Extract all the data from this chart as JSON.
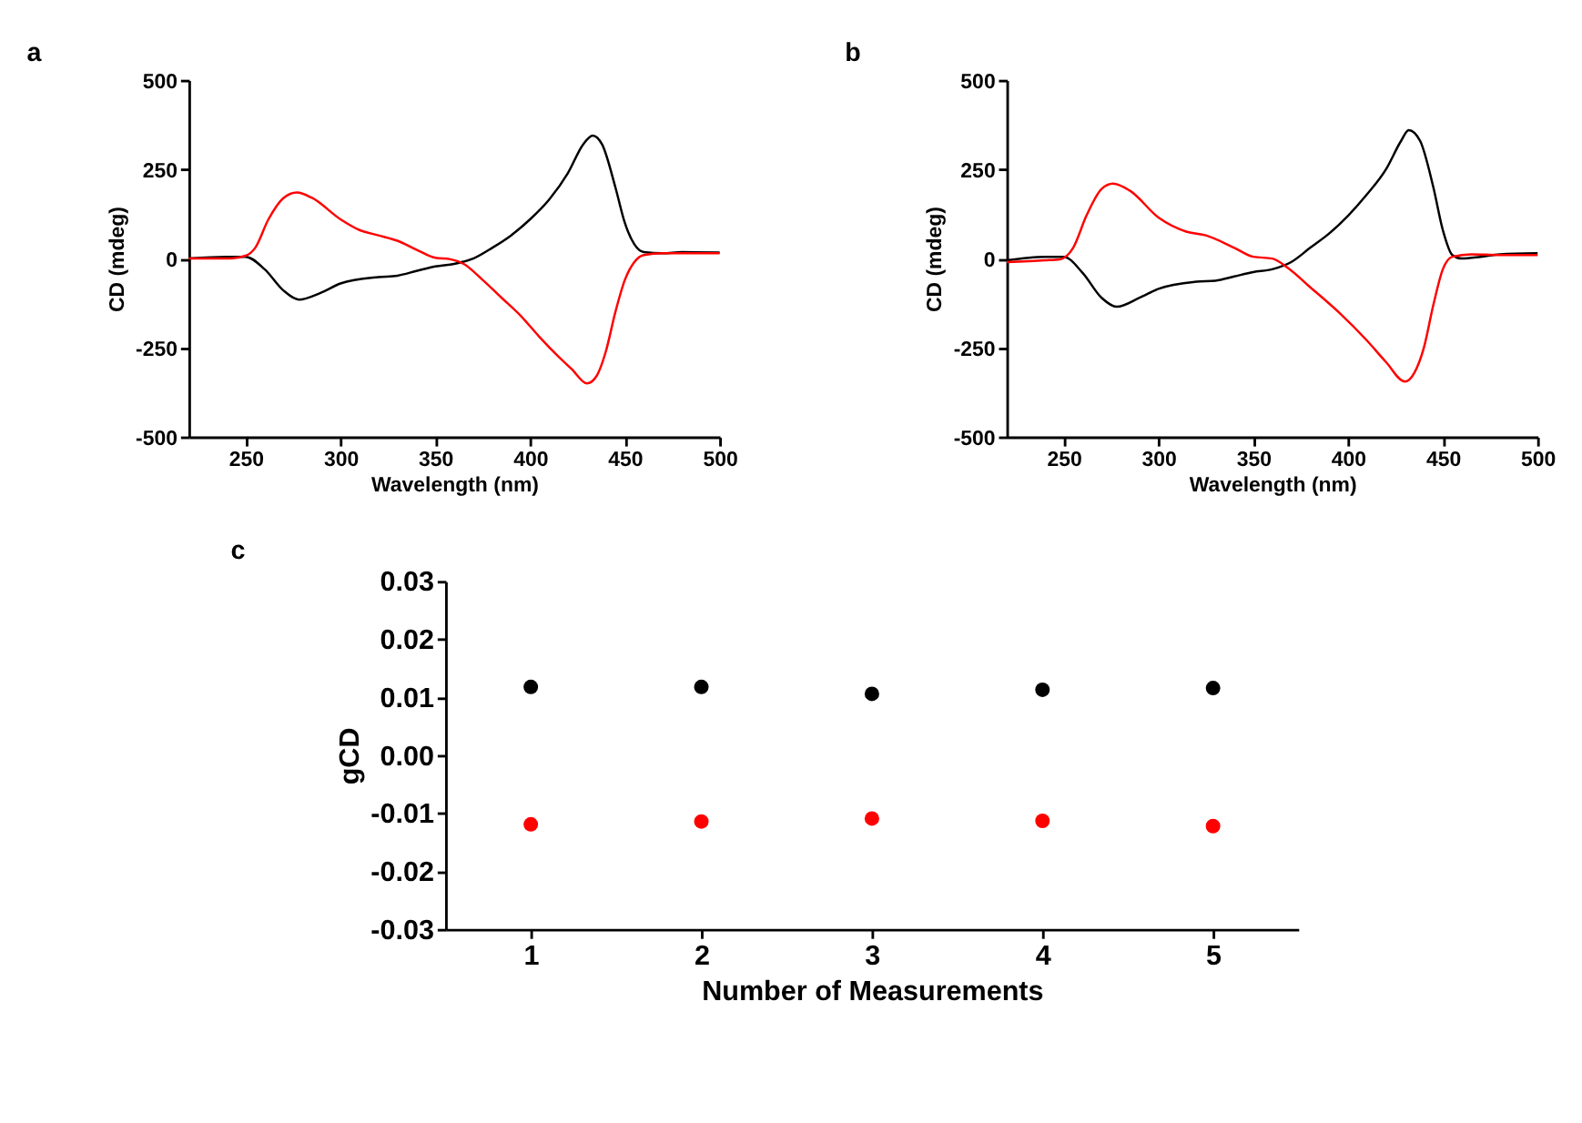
{
  "chart_data": [
    {
      "type": "line",
      "title": "a",
      "xlabel": "Wavelength (nm)",
      "ylabel": "CD (mdeg)",
      "xlim": [
        220,
        500
      ],
      "xticks": [
        250,
        300,
        350,
        400,
        450,
        500
      ],
      "ylim": [
        -500,
        500
      ],
      "yticks": [
        -500,
        -250,
        0,
        250,
        500
      ],
      "grid": false,
      "legend": false,
      "marker": "none",
      "line_style": "solid",
      "series": [
        {
          "color": "#000000",
          "x": [
            220,
            240,
            250,
            260,
            270,
            278,
            290,
            300,
            320,
            330,
            340,
            350,
            360,
            370,
            380,
            390,
            400,
            410,
            420,
            428,
            433,
            438,
            445,
            450,
            455,
            460,
            470,
            480,
            500
          ],
          "values": [
            0,
            5,
            5,
            -30,
            -90,
            -115,
            -95,
            -70,
            -52,
            -48,
            -35,
            -22,
            -15,
            0,
            30,
            65,
            110,
            165,
            240,
            320,
            345,
            320,
            200,
            100,
            40,
            18,
            15,
            18,
            17
          ]
        },
        {
          "color": "#ff0000",
          "x": [
            220,
            240,
            250,
            255,
            262,
            270,
            277,
            285,
            300,
            310,
            320,
            330,
            340,
            350,
            358,
            365,
            375,
            385,
            395,
            405,
            415,
            422,
            430,
            435,
            440,
            445,
            450,
            455,
            460,
            470,
            500
          ],
          "values": [
            0,
            0,
            8,
            30,
            110,
            170,
            185,
            170,
            110,
            80,
            65,
            50,
            25,
            2,
            -2,
            -15,
            -60,
            -110,
            -160,
            -220,
            -275,
            -310,
            -350,
            -330,
            -260,
            -150,
            -60,
            -10,
            10,
            15,
            15
          ]
        }
      ]
    },
    {
      "type": "line",
      "title": "b",
      "xlabel": "Wavelength (nm)",
      "ylabel": "CD (mdeg)",
      "xlim": [
        220,
        500
      ],
      "xticks": [
        250,
        300,
        350,
        400,
        450,
        500
      ],
      "ylim": [
        -500,
        500
      ],
      "yticks": [
        -500,
        -250,
        0,
        250,
        500
      ],
      "grid": false,
      "legend": false,
      "marker": "none",
      "line_style": "solid",
      "series": [
        {
          "color": "#000000",
          "x": [
            220,
            240,
            250,
            260,
            270,
            278,
            290,
            300,
            320,
            330,
            340,
            350,
            360,
            370,
            380,
            390,
            400,
            410,
            420,
            428,
            432,
            438,
            445,
            450,
            455,
            460,
            470,
            480,
            500
          ],
          "values": [
            -5,
            5,
            5,
            -40,
            -110,
            -135,
            -110,
            -85,
            -65,
            -62,
            -50,
            -38,
            -30,
            -10,
            30,
            70,
            120,
            180,
            250,
            330,
            360,
            330,
            200,
            80,
            10,
            0,
            5,
            12,
            15
          ]
        },
        {
          "color": "#ff0000",
          "x": [
            220,
            240,
            248,
            255,
            262,
            270,
            276,
            285,
            300,
            315,
            325,
            340,
            350,
            360,
            368,
            380,
            395,
            410,
            420,
            430,
            435,
            440,
            445,
            450,
            455,
            465,
            480,
            500
          ],
          "values": [
            -10,
            -5,
            -2,
            30,
            120,
            195,
            210,
            190,
            115,
            75,
            65,
            30,
            5,
            0,
            -25,
            -80,
            -150,
            -230,
            -290,
            -345,
            -320,
            -250,
            -130,
            -30,
            5,
            12,
            10,
            10
          ]
        }
      ]
    },
    {
      "type": "scatter",
      "title": "c",
      "xlabel": "Number of Measurements",
      "ylabel": "gCD",
      "xlim": [
        0.5,
        5.5
      ],
      "xticks": [
        1,
        2,
        3,
        4,
        5
      ],
      "ylim": [
        -0.03,
        0.03
      ],
      "yticks": [
        {
          "value": -0.03,
          "label": "-0.03"
        },
        {
          "value": -0.02,
          "label": "-0.02"
        },
        {
          "value": -0.01,
          "label": "-0.01"
        },
        {
          "value": 0,
          "label": "0.00"
        },
        {
          "value": 0.01,
          "label": "0.01"
        },
        {
          "value": 0.02,
          "label": "0.02"
        },
        {
          "value": 0.03,
          "label": "0.03"
        }
      ],
      "grid": false,
      "legend": false,
      "marker": "circle",
      "x": [
        1,
        2,
        3,
        4,
        5
      ],
      "series": [
        {
          "color": "#000000",
          "values": [
            0.0118,
            0.0118,
            0.0106,
            0.0113,
            0.0116
          ]
        },
        {
          "color": "#ff0000",
          "values": [
            -0.0119,
            -0.0114,
            -0.0109,
            -0.0113,
            -0.0122
          ]
        }
      ]
    }
  ]
}
